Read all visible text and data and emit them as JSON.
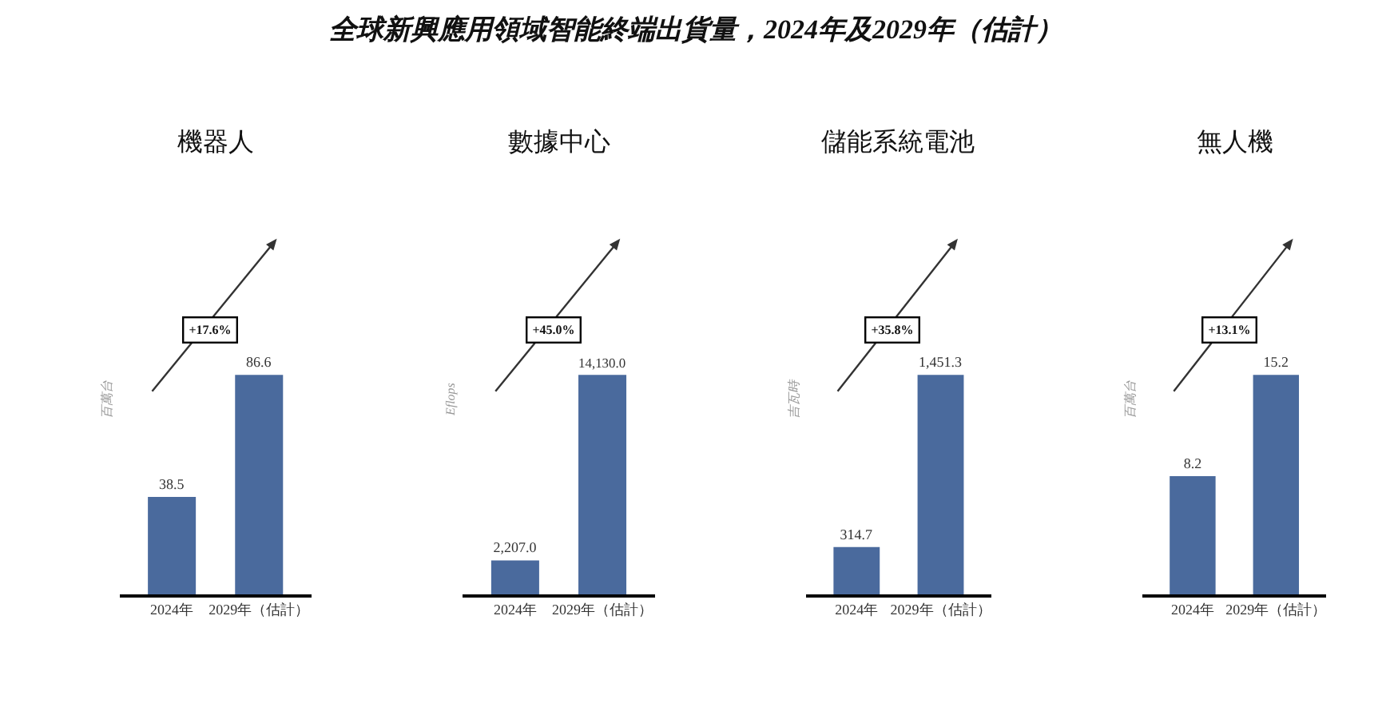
{
  "chart_data": [
    {
      "type": "bar",
      "title": "機器人",
      "ylabel": "百萬台",
      "categories": [
        "2024年",
        "2029年（估計）"
      ],
      "values": [
        38.5,
        86.6
      ],
      "color": "#4a6a9d",
      "data_labels": true,
      "value_labels": [
        "38.5",
        "86.6"
      ],
      "annotations": [
        "+17.6%"
      ]
    },
    {
      "type": "bar",
      "title": "數據中心",
      "ylabel": "Eflops",
      "categories": [
        "2024年",
        "2029年（估計）"
      ],
      "values": [
        2207.0,
        14130.0
      ],
      "color": "#4a6a9d",
      "data_labels": true,
      "value_labels": [
        "2,207.0",
        "14,130.0"
      ],
      "annotations": [
        "+45.0%"
      ]
    },
    {
      "type": "bar",
      "title": "儲能系統電池",
      "ylabel": "吉瓦時",
      "categories": [
        "2024年",
        "2029年（估計）"
      ],
      "values": [
        314.7,
        1451.3
      ],
      "color": "#4a6a9d",
      "data_labels": true,
      "value_labels": [
        "314.7",
        "1,451.3"
      ],
      "annotations": [
        "+35.8%"
      ]
    },
    {
      "type": "bar",
      "title": "無人機",
      "ylabel": "百萬台",
      "categories": [
        "2024年",
        "2029年（估計）"
      ],
      "values": [
        8.2,
        15.2
      ],
      "color": "#4a6a9d",
      "data_labels": true,
      "value_labels": [
        "8.2",
        "15.2"
      ],
      "annotations": [
        "+13.1%"
      ]
    },
    {
      "type": "other",
      "title": "全球新興應用領域智能終端出貨量，2024年及2029年（估計）"
    }
  ]
}
